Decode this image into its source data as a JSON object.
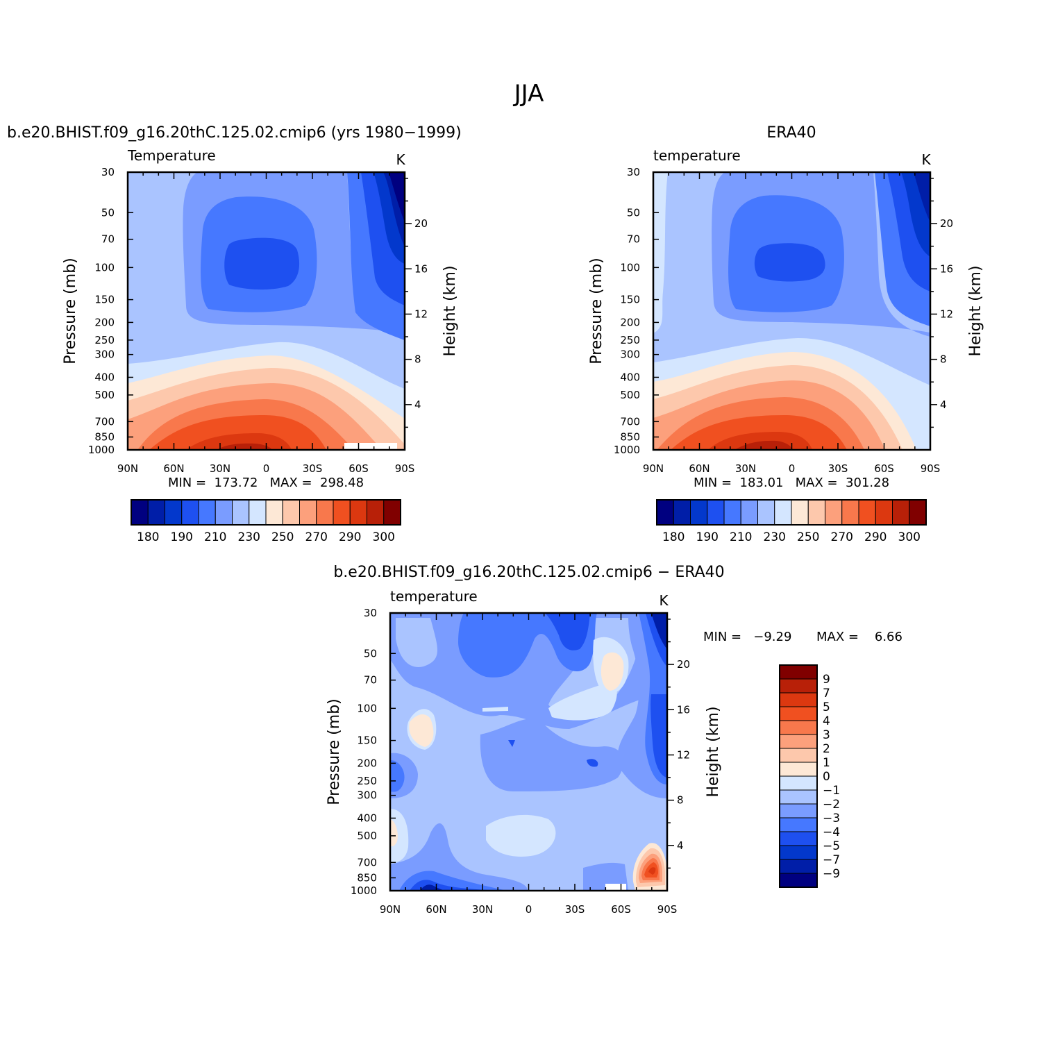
{
  "figure": {
    "title": "JJA"
  },
  "palette": {
    "temperature": [
      "#000080",
      "#001ea8",
      "#0338cc",
      "#1e50f0",
      "#4678ff",
      "#7a9cff",
      "#aac4ff",
      "#d4e6ff",
      "#fde8d6",
      "#fdc8ac",
      "#fca07c",
      "#f8784c",
      "#f05020",
      "#dc3810",
      "#b82008",
      "#800000"
    ],
    "difference": [
      "#000080",
      "#001ea8",
      "#0338cc",
      "#1e50f0",
      "#4678ff",
      "#7a9cff",
      "#aac4ff",
      "#d4e6ff",
      "#fde8d6",
      "#fdc8ac",
      "#fca07c",
      "#f8784c",
      "#f05020",
      "#dc3810",
      "#b82008",
      "#800000"
    ]
  },
  "chart_data": [
    {
      "type": "heatmap",
      "id": "model",
      "title": "b.e20.BHIST.f09_g16.20thC.125.02.cmip6 (yrs 1980−1999)",
      "variable_label": "Temperature",
      "units": "K",
      "ylabel": "Pressure (mb)",
      "ylabel_right": "Height (km)",
      "x_tick_labels": [
        "90N",
        "60N",
        "30N",
        "0",
        "30S",
        "60S",
        "90S"
      ],
      "y_tick_values": [
        30,
        50,
        70,
        100,
        150,
        200,
        250,
        300,
        400,
        500,
        700,
        850,
        1000
      ],
      "y_right_ticks": [
        20,
        16,
        12,
        8,
        4
      ],
      "min": 173.72,
      "max": 298.48,
      "stats_text": "MIN =  173.72   MAX =  298.48",
      "colorbar_labels": [
        "180",
        "190",
        "210",
        "230",
        "250",
        "270",
        "290",
        "300"
      ]
    },
    {
      "type": "heatmap",
      "id": "obs",
      "title": "ERA40",
      "variable_label": "temperature",
      "units": "K",
      "ylabel": "Pressure (mb)",
      "ylabel_right": "Height (km)",
      "x_tick_labels": [
        "90N",
        "60N",
        "30N",
        "0",
        "30S",
        "60S",
        "90S"
      ],
      "y_tick_values": [
        30,
        50,
        70,
        100,
        150,
        200,
        250,
        300,
        400,
        500,
        700,
        850,
        1000
      ],
      "y_right_ticks": [
        20,
        16,
        12,
        8,
        4
      ],
      "min": 183.01,
      "max": 301.28,
      "stats_text": "MIN =  183.01   MAX =  301.28",
      "colorbar_labels": [
        "180",
        "190",
        "210",
        "230",
        "250",
        "270",
        "290",
        "300"
      ]
    },
    {
      "type": "heatmap",
      "id": "diff",
      "title": "b.e20.BHIST.f09_g16.20thC.125.02.cmip6 − ERA40",
      "variable_label": "temperature",
      "units": "K",
      "ylabel": "Pressure (mb)",
      "ylabel_right": "Height (km)",
      "x_tick_labels": [
        "90N",
        "60N",
        "30N",
        "0",
        "30S",
        "60S",
        "90S"
      ],
      "y_tick_values": [
        30,
        50,
        70,
        100,
        150,
        200,
        250,
        300,
        400,
        500,
        700,
        850,
        1000
      ],
      "y_right_ticks": [
        20,
        16,
        12,
        8,
        4
      ],
      "min": -9.29,
      "max": 6.66,
      "stats_min_text": "MIN =   −9.29",
      "stats_max_text": "MAX =    6.66",
      "colorbar_labels": [
        "9",
        "7",
        "5",
        "4",
        "3",
        "2",
        "1",
        "0",
        "−1",
        "−2",
        "−3",
        "−4",
        "−5",
        "−7",
        "−9"
      ]
    }
  ]
}
